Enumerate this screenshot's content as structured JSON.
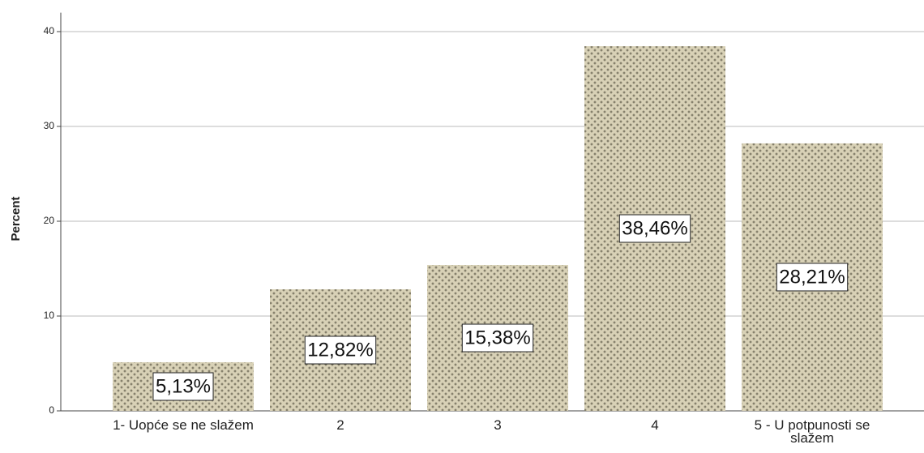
{
  "chart_data": {
    "type": "bar",
    "y_label": "Percent",
    "categories": [
      "1- Uopće se ne slažem",
      "2",
      "3",
      "4",
      "5 - U potpunosti se slažem"
    ],
    "values": [
      5.13,
      12.82,
      15.38,
      38.46,
      28.21
    ],
    "value_labels": [
      "5,13%",
      "12,82%",
      "15,38%",
      "38,46%",
      "28,21%"
    ],
    "color": "#d8d1b6",
    "ylim": [
      0,
      42
    ],
    "yticks": [
      0,
      10,
      20,
      30,
      40
    ],
    "grid": true
  }
}
